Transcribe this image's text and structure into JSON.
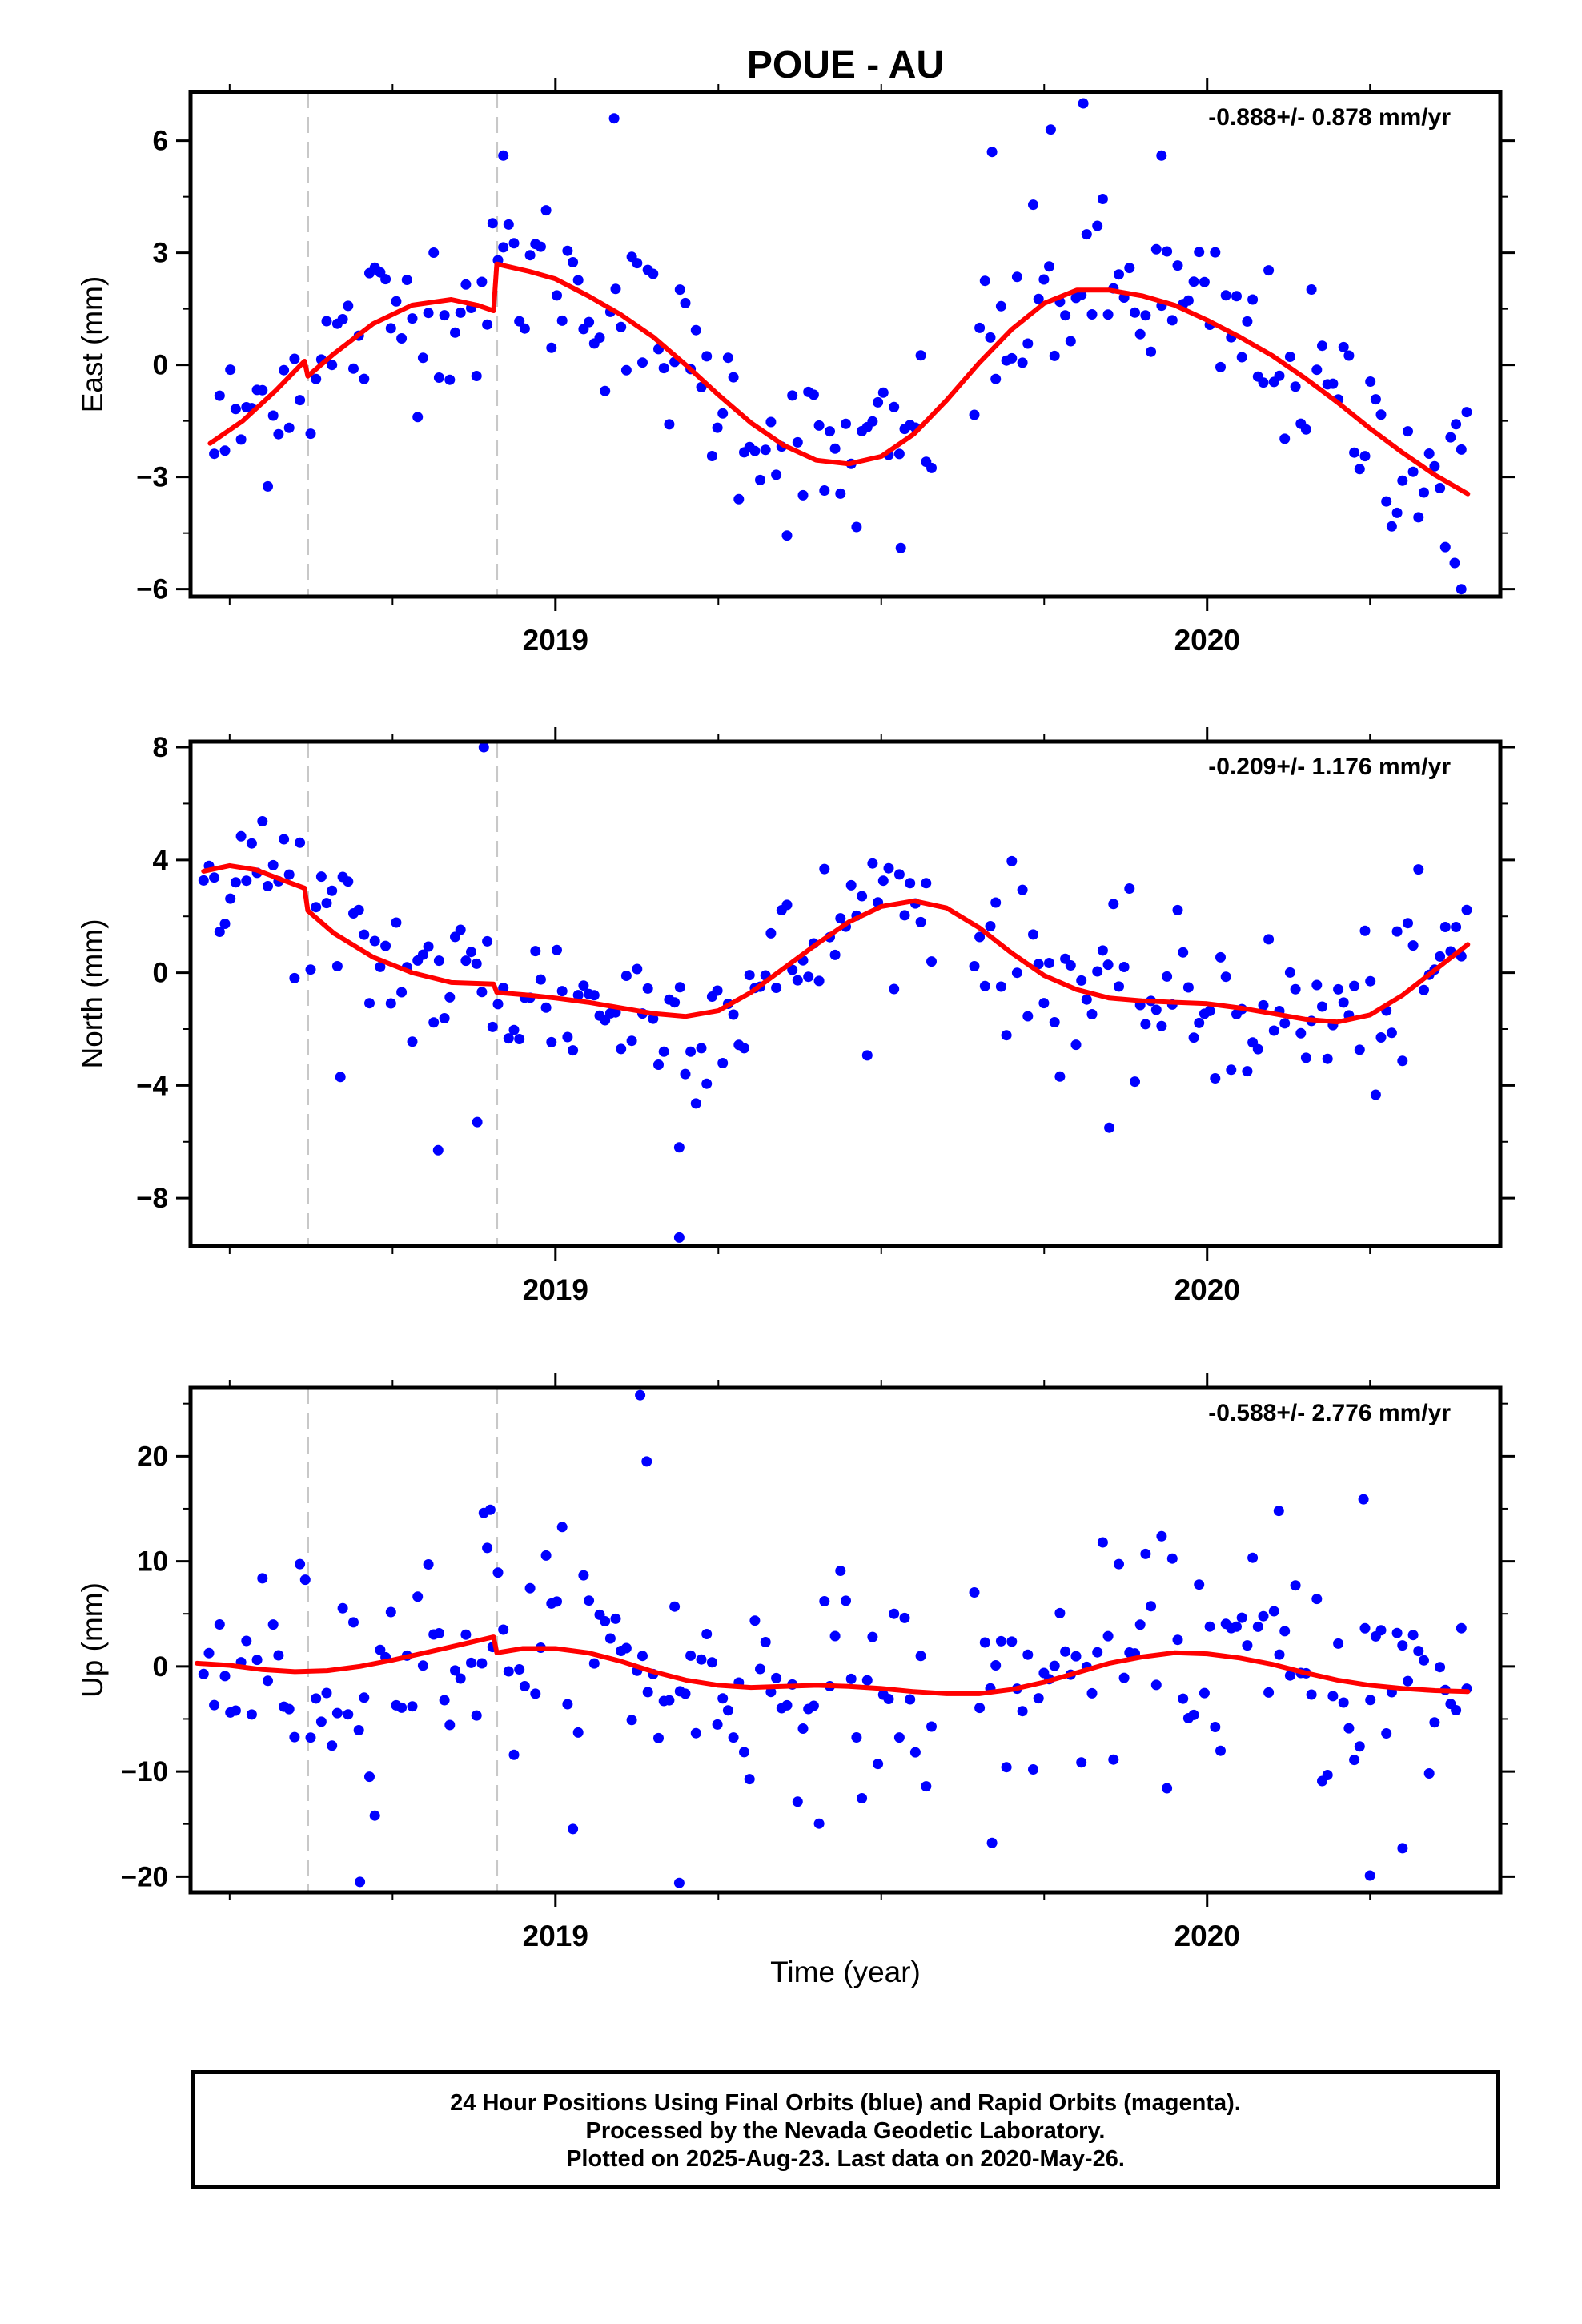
{
  "chart_data": {
    "title": "POUE - AU",
    "type": "scatter",
    "x_axis": {
      "label": "Time (year)",
      "ticks": [
        2019,
        2020
      ],
      "tick_labels": [
        "2019",
        "2020"
      ],
      "range": [
        2018.44,
        2020.45
      ]
    },
    "event_lines_year": [
      2018.62,
      2018.91
    ],
    "panels": [
      {
        "name": "east",
        "ylabel": "East (mm)",
        "ylim": [
          -6.2,
          7.3
        ],
        "yticks": [
          -6,
          -3,
          0,
          3,
          6
        ],
        "rate_text": "-0.888+/- 0.878 mm/yr",
        "model": {
          "type": "line",
          "color": "#ff0000",
          "segments": [
            {
              "x": [
                2018.47,
                2018.52,
                2018.57,
                2018.615
              ],
              "y": [
                -2.1,
                -1.5,
                -0.7,
                0.1
              ]
            },
            {
              "x": [
                2018.62,
                2018.66,
                2018.72,
                2018.78,
                2018.84,
                2018.88,
                2018.905
              ],
              "y": [
                -0.3,
                0.3,
                1.1,
                1.6,
                1.75,
                1.6,
                1.45
              ]
            },
            {
              "x": [
                2018.91,
                2018.96,
                2019.0,
                2019.05,
                2019.1,
                2019.15,
                2019.2,
                2019.25,
                2019.3,
                2019.35,
                2019.4,
                2019.45,
                2019.5,
                2019.55,
                2019.6,
                2019.65,
                2019.7,
                2019.75,
                2019.8,
                2019.85,
                2019.9,
                2019.95,
                2020.0,
                2020.05,
                2020.1,
                2020.15,
                2020.2,
                2020.25,
                2020.3,
                2020.35,
                2020.4
              ],
              "y": [
                2.7,
                2.5,
                2.3,
                1.85,
                1.35,
                0.75,
                0.0,
                -0.8,
                -1.55,
                -2.15,
                -2.55,
                -2.65,
                -2.45,
                -1.85,
                -0.95,
                0.05,
                0.95,
                1.65,
                2.0,
                2.0,
                1.85,
                1.6,
                1.2,
                0.75,
                0.25,
                -0.35,
                -1.0,
                -1.7,
                -2.35,
                -2.95,
                -3.45
              ]
            }
          ]
        }
      },
      {
        "name": "north",
        "ylabel": "North (mm)",
        "ylim": [
          -9.7,
          8.2
        ],
        "yticks": [
          -8,
          -4,
          0,
          4,
          8
        ],
        "rate_text": "-0.209+/- 1.176 mm/yr",
        "model": {
          "type": "line",
          "color": "#ff0000",
          "segments": [
            {
              "x": [
                2018.46,
                2018.5,
                2018.54,
                2018.58,
                2018.615
              ],
              "y": [
                3.6,
                3.8,
                3.65,
                3.3,
                3.0
              ]
            },
            {
              "x": [
                2018.62,
                2018.66,
                2018.72,
                2018.78,
                2018.84,
                2018.905
              ],
              "y": [
                2.2,
                1.4,
                0.55,
                0.0,
                -0.35,
                -0.4
              ]
            },
            {
              "x": [
                2018.91,
                2018.96,
                2019.0,
                2019.05,
                2019.1,
                2019.15,
                2019.2,
                2019.25,
                2019.3,
                2019.35,
                2019.4,
                2019.45,
                2019.5,
                2019.55,
                2019.6,
                2019.65,
                2019.7,
                2019.75,
                2019.8,
                2019.85,
                2019.9,
                2019.95,
                2020.0,
                2020.05,
                2020.1,
                2020.15,
                2020.2,
                2020.25,
                2020.3,
                2020.35,
                2020.4
              ],
              "y": [
                -0.7,
                -0.8,
                -0.9,
                -1.05,
                -1.25,
                -1.45,
                -1.55,
                -1.35,
                -0.7,
                0.15,
                1.0,
                1.8,
                2.35,
                2.55,
                2.3,
                1.6,
                0.7,
                -0.1,
                -0.6,
                -0.9,
                -1.0,
                -1.05,
                -1.1,
                -1.25,
                -1.45,
                -1.65,
                -1.75,
                -1.5,
                -0.8,
                0.1,
                1.0
              ]
            }
          ]
        }
      },
      {
        "name": "up",
        "ylabel": "Up (mm)",
        "ylim": [
          -21.5,
          26.5
        ],
        "yticks": [
          -20,
          -10,
          0,
          10,
          20
        ],
        "rate_text": "-0.588+/- 2.776 mm/yr",
        "model": {
          "type": "line",
          "color": "#ff0000",
          "segments": [
            {
              "x": [
                2018.45,
                2018.5,
                2018.55,
                2018.6,
                2018.65,
                2018.7,
                2018.75,
                2018.8,
                2018.85,
                2018.905
              ],
              "y": [
                0.3,
                0.1,
                -0.3,
                -0.5,
                -0.4,
                0.0,
                0.6,
                1.3,
                2.0,
                2.8
              ]
            },
            {
              "x": [
                2018.91,
                2018.95,
                2019.0,
                2019.05,
                2019.1,
                2019.15,
                2019.2,
                2019.25,
                2019.3,
                2019.35,
                2019.4,
                2019.45,
                2019.5,
                2019.55,
                2019.6,
                2019.65,
                2019.7,
                2019.75,
                2019.8,
                2019.85,
                2019.9,
                2019.95,
                2020.0,
                2020.05,
                2020.1,
                2020.15,
                2020.2,
                2020.25,
                2020.3,
                2020.35,
                2020.4
              ],
              "y": [
                1.3,
                1.7,
                1.7,
                1.3,
                0.5,
                -0.5,
                -1.3,
                -1.8,
                -2.0,
                -1.9,
                -1.8,
                -1.9,
                -2.1,
                -2.4,
                -2.6,
                -2.6,
                -2.2,
                -1.5,
                -0.6,
                0.3,
                0.9,
                1.3,
                1.2,
                0.8,
                0.2,
                -0.6,
                -1.3,
                -1.8,
                -2.1,
                -2.3,
                -2.4
              ]
            }
          ]
        }
      }
    ],
    "scatter_series": {
      "name": "Final Orbits",
      "color": "#0000ff",
      "note": "Daily positions, approx. mid-2018 to 2020-May-26, with a data gap near 2019.58-2019.64; residual scatter about model",
      "date_range": [
        2018.46,
        2020.4
      ],
      "gaps": [
        [
          2019.58,
          2019.635
        ]
      ],
      "spacing_days": 3,
      "scatter_sd": {
        "east": 1.15,
        "north": 1.45,
        "up": 5.0
      },
      "outliers": [
        {
          "panel": "east",
          "points": [
            [
              2019.09,
              6.6
            ],
            [
              2019.81,
              7.0
            ],
            [
              2019.76,
              6.3
            ],
            [
              2019.67,
              5.7
            ],
            [
              2019.93,
              5.6
            ],
            [
              2020.39,
              -6.0
            ],
            [
              2020.38,
              -5.3
            ],
            [
              2018.92,
              5.6
            ],
            [
              2019.53,
              -4.9
            ]
          ]
        },
        {
          "panel": "north",
          "points": [
            [
              2018.89,
              8.0
            ],
            [
              2019.19,
              -9.4
            ],
            [
              2019.19,
              -6.2
            ],
            [
              2018.82,
              -6.3
            ],
            [
              2018.88,
              -5.3
            ],
            [
              2019.85,
              -5.5
            ],
            [
              2018.67,
              -3.7
            ]
          ]
        },
        {
          "panel": "up",
          "points": [
            [
              2019.13,
              25.8
            ],
            [
              2019.14,
              19.5
            ],
            [
              2020.24,
              15.9
            ],
            [
              2020.11,
              14.8
            ],
            [
              2018.89,
              14.6
            ],
            [
              2018.9,
              14.9
            ],
            [
              2019.19,
              -20.6
            ],
            [
              2018.7,
              -20.5
            ],
            [
              2020.25,
              -19.9
            ],
            [
              2020.3,
              -17.3
            ],
            [
              2019.67,
              -16.8
            ]
          ]
        }
      ]
    }
  },
  "footer": {
    "line1": "24 Hour Positions Using Final Orbits (blue) and Rapid Orbits (magenta).",
    "line2": "Processed by the Nevada Geodetic Laboratory.",
    "line3": "Plotted on 2025-Aug-23. Last data on 2020-May-26."
  }
}
